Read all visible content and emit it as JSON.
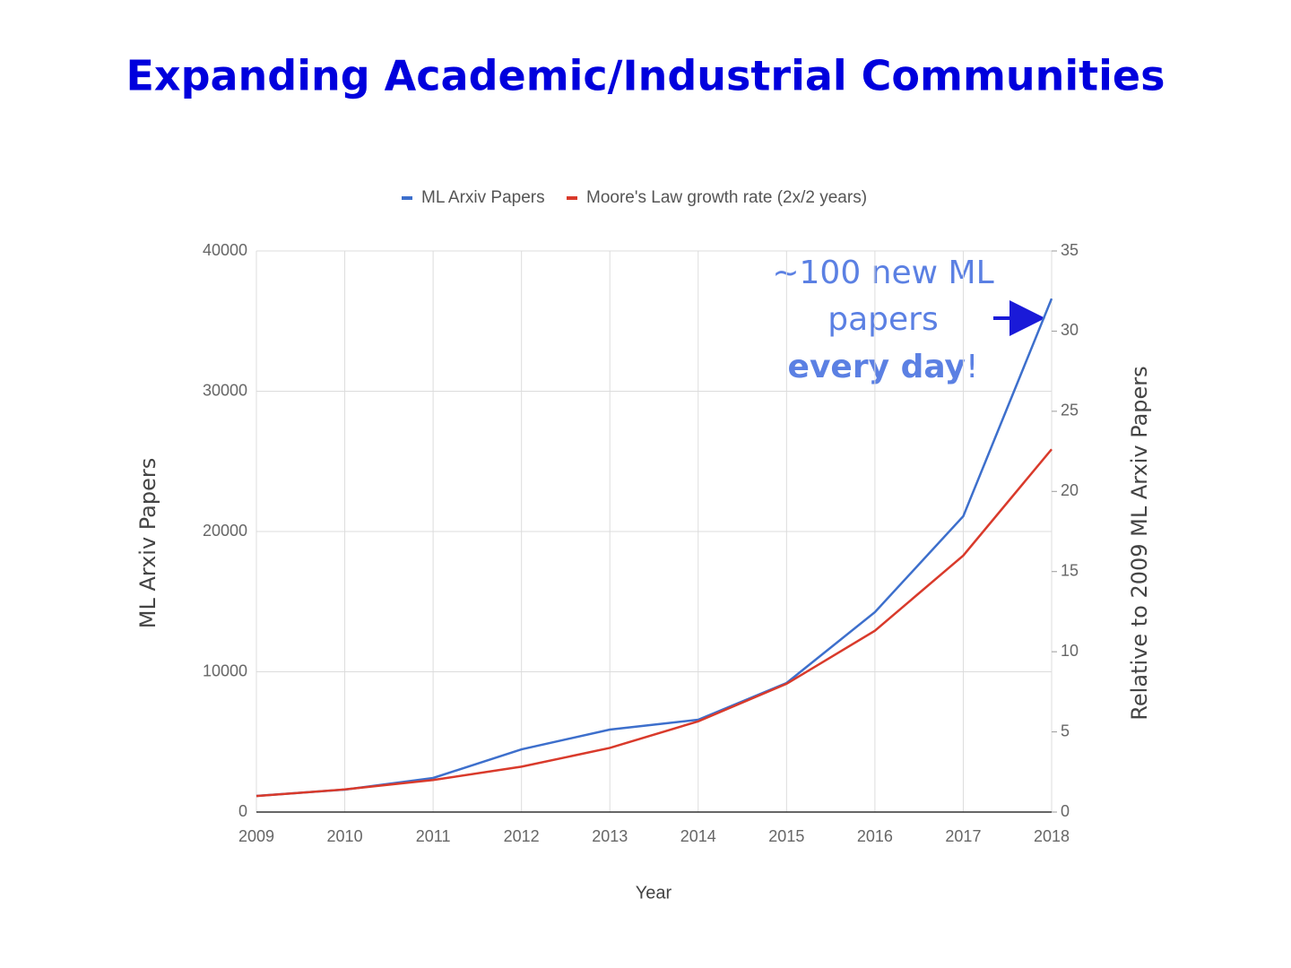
{
  "chart_data": {
    "type": "line",
    "title": "Expanding Academic/Industrial Communities",
    "x": [
      2009,
      2010,
      2011,
      2012,
      2013,
      2014,
      2015,
      2016,
      2017,
      2018
    ],
    "series": [
      {
        "name": "ML Arxiv Papers",
        "color": "#3d6fcc",
        "values": [
          1150,
          1600,
          2430,
          4470,
          5880,
          6580,
          9200,
          14250,
          21090,
          36600
        ]
      },
      {
        "name": "Moore's Law growth rate (2x/2 years)",
        "color": "#d93a2b",
        "axis": "y2",
        "values": [
          1,
          1.41,
          2,
          2.83,
          4,
          5.66,
          8,
          11.31,
          16,
          22.63
        ]
      }
    ],
    "xlabel": "Year",
    "ylabel": "ML Arxiv Papers",
    "y2label": "Relative to 2009 ML Arxiv Papers",
    "xlim": [
      2009,
      2018
    ],
    "xticks": [
      2009,
      2010,
      2011,
      2012,
      2013,
      2014,
      2015,
      2016,
      2017,
      2018
    ],
    "ylim": [
      0,
      40000
    ],
    "yticks": [
      0,
      10000,
      20000,
      30000,
      40000
    ],
    "y2lim": [
      0,
      35
    ],
    "y2ticks": [
      0,
      5,
      10,
      15,
      20,
      25,
      30,
      35
    ],
    "grid": true,
    "legend": "top",
    "annotation": {
      "lines": [
        "~100 new ML",
        "papers"
      ],
      "bold": "every day",
      "tail": "!"
    }
  }
}
